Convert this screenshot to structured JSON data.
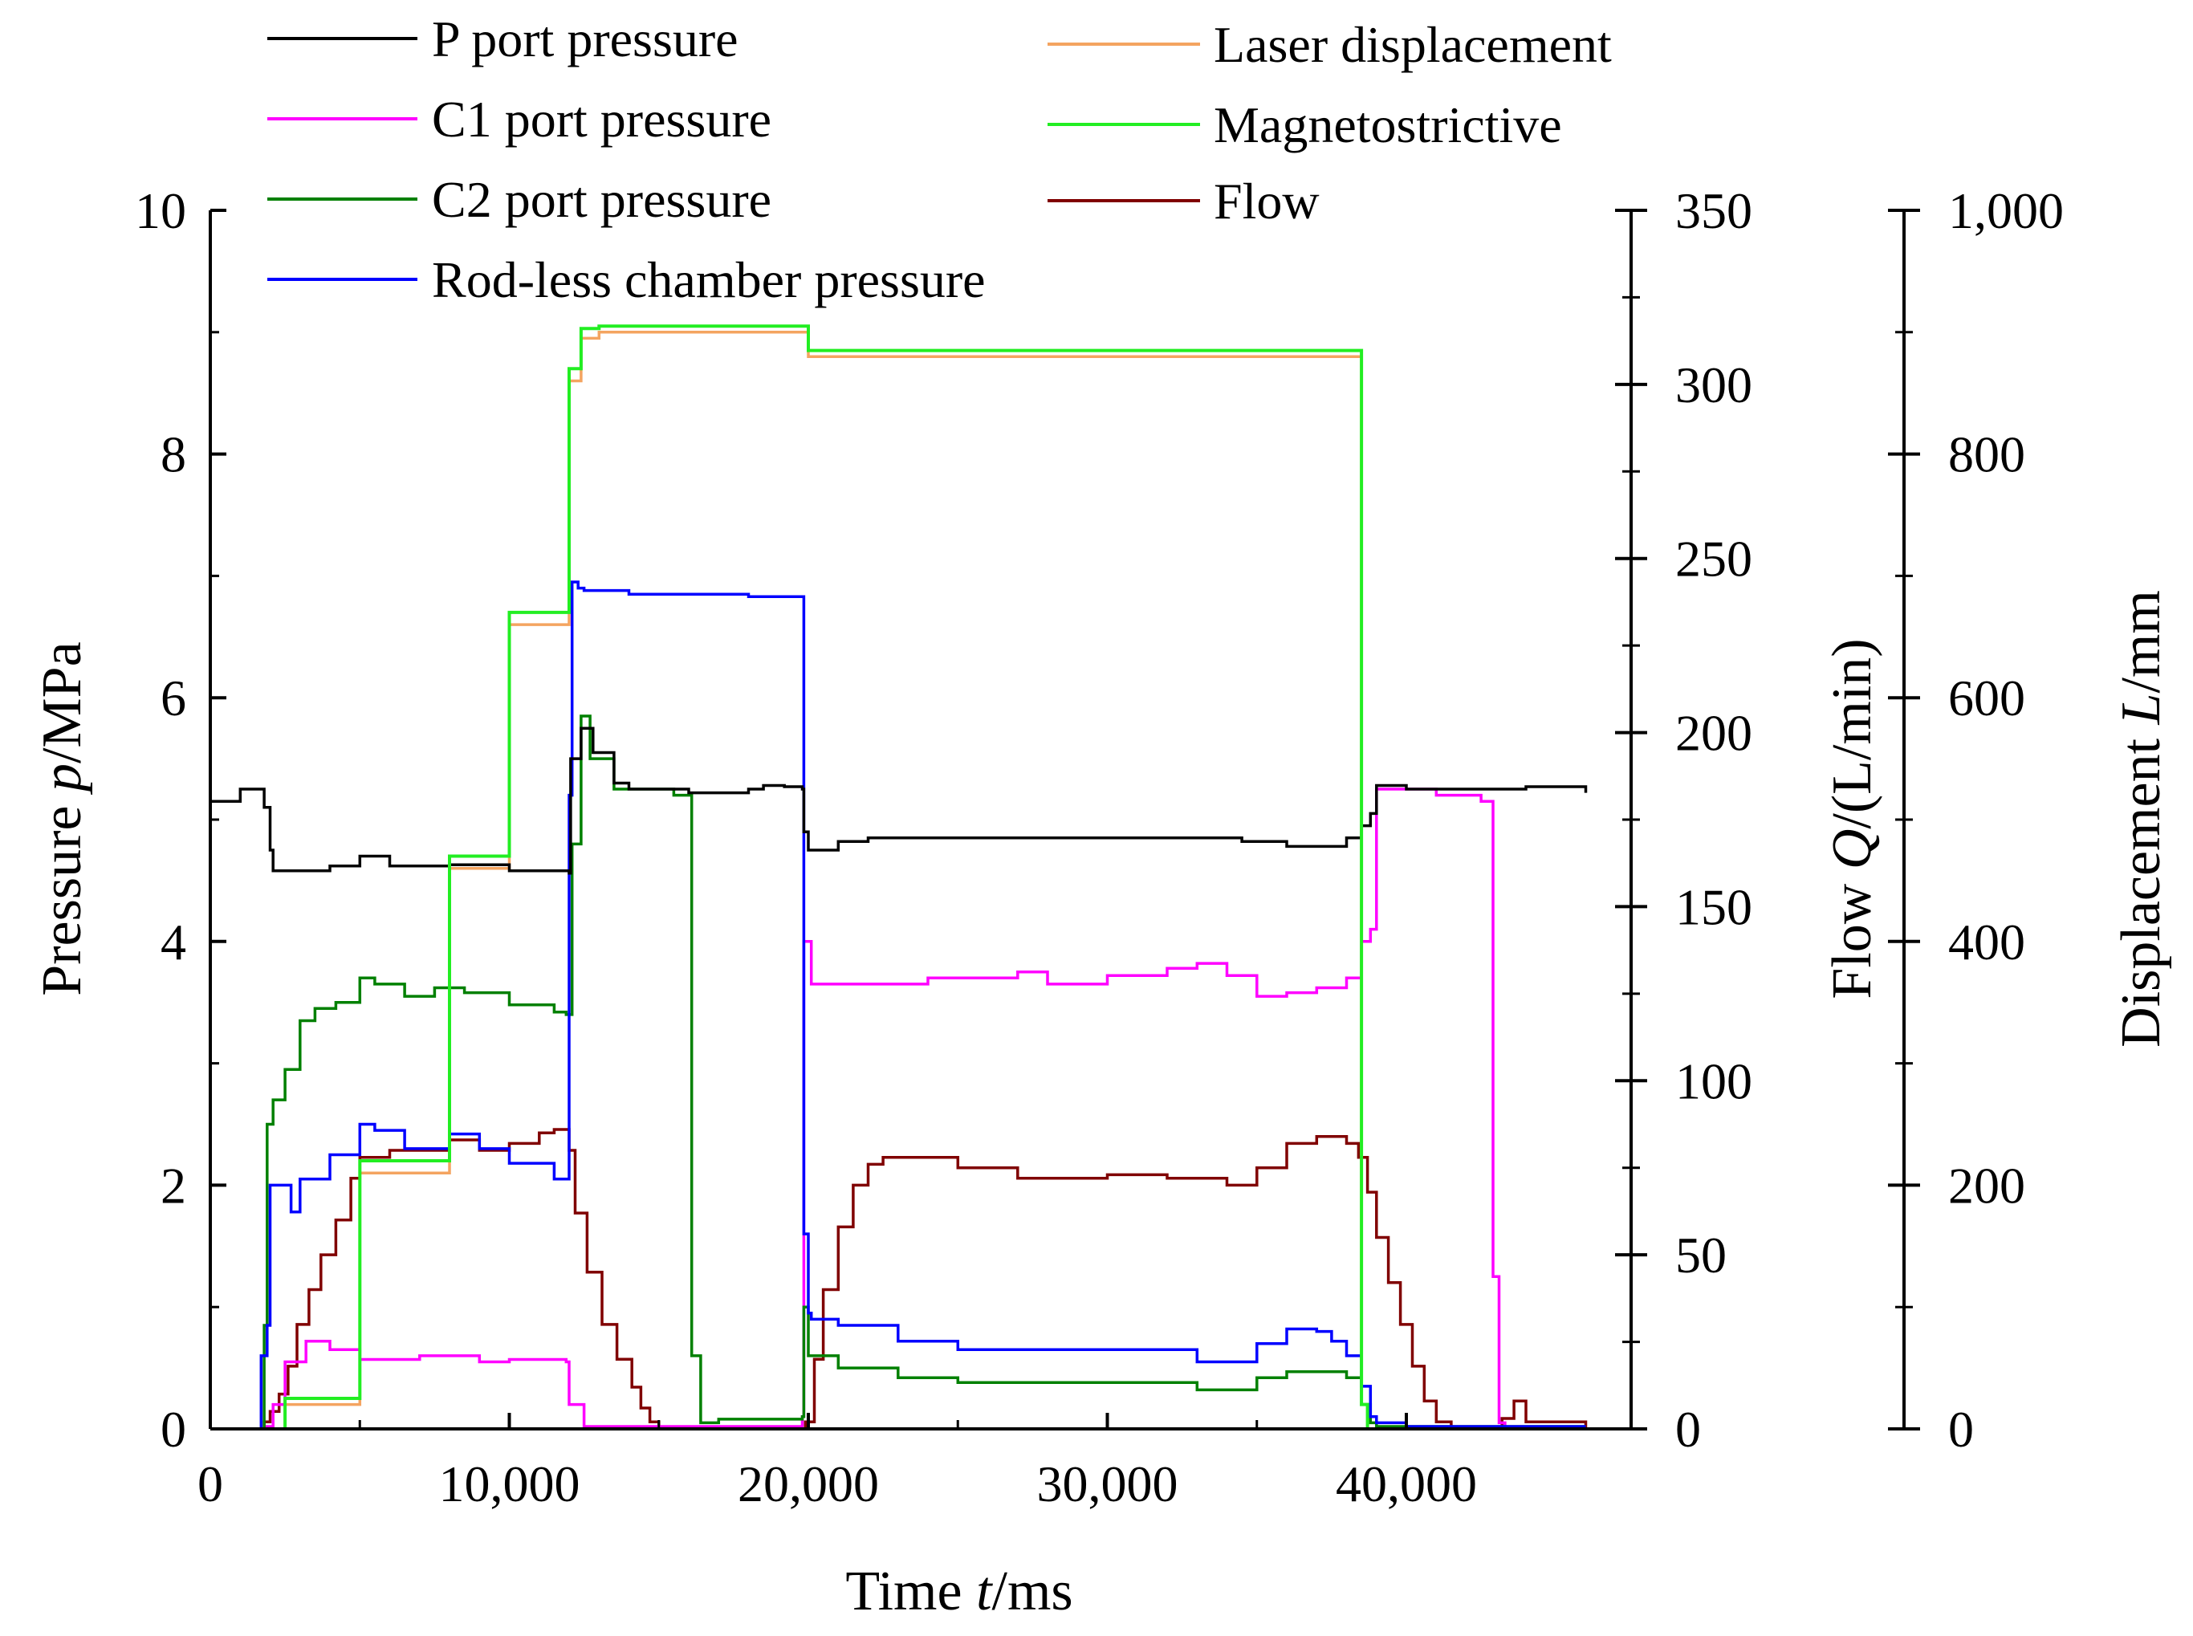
{
  "chart_data": {
    "type": "line",
    "x_label_prefix": "Time ",
    "x_label_var": "t",
    "x_label_unit": "/ms",
    "xlim": [
      0,
      48000
    ],
    "x_ticks": [
      0,
      10000,
      20000,
      30000,
      40000
    ],
    "x_tick_labels": [
      "0",
      "10,000",
      "20,000",
      "30,000",
      "40,000"
    ],
    "axes": {
      "pressure": {
        "label_prefix": "Pressure ",
        "label_var": "p",
        "label_unit": "/MPa",
        "lim": [
          0,
          10
        ],
        "ticks": [
          0,
          2,
          4,
          6,
          8,
          10
        ],
        "tick_labels": [
          "0",
          "2",
          "4",
          "6",
          "8",
          "10"
        ]
      },
      "flow": {
        "label_prefix": "Flow ",
        "label_var": "Q",
        "label_unit": "/(L/min)",
        "lim": [
          0,
          350
        ],
        "ticks": [
          0,
          50,
          100,
          150,
          200,
          250,
          300,
          350
        ],
        "tick_labels": [
          "0",
          "50",
          "100",
          "150",
          "200",
          "250",
          "300",
          "350"
        ]
      },
      "displacement": {
        "label_prefix": "Displacement ",
        "label_var": "L",
        "label_unit": "/mm",
        "lim": [
          0,
          1000
        ],
        "ticks": [
          0,
          200,
          400,
          600,
          800,
          1000
        ],
        "tick_labels": [
          "0",
          "200",
          "400",
          "600",
          "800",
          "1,000"
        ]
      }
    },
    "series": [
      {
        "name": "P port pressure",
        "axis": "pressure",
        "color": "#000000",
        "x": [
          0,
          1000,
          1300,
          1800,
          2000,
          2100,
          4000,
          5000,
          6000,
          8000,
          10000,
          12000,
          12050,
          12400,
          12800,
          13500,
          14000,
          16000,
          18000,
          18500,
          19200,
          19800,
          19850,
          20000,
          21000,
          22000,
          25000,
          28000,
          30000,
          33000,
          34500,
          36000,
          38000,
          38500,
          38800,
          39000,
          40000,
          42000,
          44000,
          46000
        ],
        "y": [
          5.15,
          5.25,
          5.25,
          5.1,
          4.75,
          4.58,
          4.62,
          4.7,
          4.62,
          4.63,
          4.58,
          4.56,
          5.5,
          5.75,
          5.55,
          5.3,
          5.25,
          5.22,
          5.25,
          5.28,
          5.27,
          5.25,
          4.9,
          4.75,
          4.82,
          4.85,
          4.85,
          4.85,
          4.85,
          4.85,
          4.82,
          4.78,
          4.85,
          4.95,
          5.05,
          5.28,
          5.25,
          5.25,
          5.27,
          5.22
        ]
      },
      {
        "name": "C1 port pressure",
        "axis": "pressure",
        "color": "#ff00ff",
        "x": [
          0,
          1800,
          1900,
          2100,
          2500,
          3200,
          4000,
          5000,
          7000,
          9000,
          10000,
          11500,
          11900,
          12000,
          12500,
          14000,
          16000,
          18000,
          19500,
          19800,
          19850,
          20000,
          20100,
          21000,
          24000,
          27000,
          28000,
          30000,
          32000,
          33000,
          34000,
          35000,
          36000,
          37000,
          38000,
          38500,
          38800,
          39000,
          40000,
          41000,
          42500,
          42600,
          42900,
          43100,
          43300,
          46000
        ],
        "y": [
          0,
          0,
          0.02,
          0.2,
          0.55,
          0.72,
          0.65,
          0.57,
          0.6,
          0.55,
          0.57,
          0.57,
          0.55,
          0.2,
          0.02,
          0.02,
          0.02,
          0.02,
          0.02,
          0.1,
          4.0,
          4.0,
          3.65,
          3.65,
          3.7,
          3.75,
          3.65,
          3.72,
          3.78,
          3.82,
          3.72,
          3.55,
          3.58,
          3.62,
          3.7,
          4.0,
          4.1,
          5.25,
          5.25,
          5.2,
          5.15,
          5.15,
          1.25,
          0.05,
          0,
          0
        ]
      },
      {
        "name": "C2 port pressure",
        "axis": "pressure",
        "color": "#008000",
        "x": [
          0,
          1600,
          1800,
          1900,
          2100,
          2500,
          3000,
          3500,
          4200,
          5000,
          5500,
          6500,
          7500,
          8500,
          10000,
          11500,
          11900,
          12100,
          12400,
          12700,
          13500,
          15500,
          15900,
          16100,
          16400,
          17000,
          19000,
          19500,
          19800,
          19850,
          20000,
          21000,
          23000,
          25000,
          28000,
          30000,
          33000,
          35000,
          36000,
          38000,
          38500,
          38800,
          39000,
          46000
        ],
        "y": [
          0,
          0,
          0.85,
          2.5,
          2.7,
          2.95,
          3.35,
          3.45,
          3.5,
          3.7,
          3.65,
          3.55,
          3.62,
          3.58,
          3.48,
          3.42,
          3.4,
          4.8,
          5.85,
          5.5,
          5.25,
          5.2,
          5.2,
          0.6,
          0.05,
          0.08,
          0.08,
          0.08,
          0.1,
          1.0,
          0.6,
          0.5,
          0.42,
          0.38,
          0.38,
          0.38,
          0.32,
          0.42,
          0.47,
          0.42,
          0.2,
          0.05,
          0.02,
          0.02
        ]
      },
      {
        "name": "Rod-less chamber pressure",
        "axis": "pressure",
        "color": "#0000ff",
        "x": [
          0,
          1500,
          1700,
          1900,
          2000,
          2600,
          2700,
          3000,
          4000,
          5000,
          5500,
          6500,
          8000,
          9000,
          10000,
          11500,
          11900,
          12000,
          12100,
          12300,
          12500,
          14000,
          16000,
          18000,
          19500,
          19800,
          19850,
          20000,
          20100,
          21000,
          23000,
          25000,
          28000,
          30000,
          33000,
          35000,
          36000,
          37000,
          37500,
          38000,
          38500,
          38800,
          39000,
          39200,
          40000,
          41000,
          42000,
          46000
        ],
        "y": [
          0,
          0,
          0.6,
          0.85,
          2.0,
          2.0,
          1.78,
          2.05,
          2.25,
          2.5,
          2.45,
          2.3,
          2.42,
          2.3,
          2.18,
          2.05,
          2.05,
          5.2,
          6.95,
          6.9,
          6.88,
          6.85,
          6.85,
          6.83,
          6.83,
          6.83,
          1.6,
          0.95,
          0.9,
          0.85,
          0.72,
          0.65,
          0.65,
          0.65,
          0.55,
          0.7,
          0.82,
          0.8,
          0.72,
          0.6,
          0.35,
          0.1,
          0.05,
          0.05,
          0.02,
          0.02,
          0.02,
          0.02
        ]
      },
      {
        "name": "Laser displacement",
        "axis": "displacement",
        "color": "#f4a460",
        "x": [
          0,
          1800,
          2500,
          5000,
          8000,
          10000,
          12000,
          12400,
          13000,
          19700,
          20000,
          38500,
          38700,
          46000
        ],
        "y": [
          0,
          0,
          20,
          210,
          460,
          660,
          860,
          895,
          900,
          900,
          880,
          20,
          0,
          0
        ]
      },
      {
        "name": "Magnetostrictive",
        "axis": "displacement",
        "color": "#22ee22",
        "x": [
          0,
          1800,
          2500,
          5000,
          8000,
          10000,
          12000,
          12400,
          13000,
          19700,
          20000,
          38500,
          38700,
          46000
        ],
        "y": [
          0,
          0,
          25,
          220,
          470,
          670,
          870,
          903,
          905,
          905,
          885,
          20,
          0,
          0
        ]
      },
      {
        "name": "Flow",
        "axis": "flow",
        "color": "#800000",
        "x": [
          0,
          1600,
          1800,
          2000,
          2300,
          2600,
          2900,
          3300,
          3700,
          4200,
          4700,
          5000,
          6000,
          7000,
          8000,
          9000,
          10000,
          11000,
          11500,
          12000,
          12200,
          12600,
          13100,
          13600,
          14100,
          14400,
          14700,
          15000,
          16000,
          18000,
          19500,
          19700,
          19900,
          20200,
          20500,
          21000,
          21500,
          22000,
          22500,
          23000,
          25000,
          27000,
          30000,
          32000,
          34000,
          35000,
          36000,
          37000,
          38000,
          38400,
          38700,
          39000,
          39400,
          39800,
          40200,
          40600,
          41000,
          41500,
          42500,
          43000,
          43200,
          43600,
          44000,
          46000
        ],
        "y": [
          0,
          0,
          2,
          5,
          10,
          18,
          30,
          40,
          50,
          60,
          72,
          78,
          80,
          80,
          83,
          80,
          82,
          85,
          86,
          80,
          62,
          45,
          30,
          20,
          12,
          6,
          2,
          0,
          0,
          0,
          0,
          0,
          2,
          20,
          40,
          58,
          70,
          76,
          78,
          78,
          75,
          72,
          73,
          72,
          70,
          75,
          82,
          84,
          82,
          78,
          68,
          55,
          42,
          30,
          18,
          8,
          2,
          0,
          0,
          0,
          3,
          8,
          2,
          0
        ]
      }
    ],
    "legend": {
      "col1": [
        "P port pressure",
        "C1 port pressure",
        "C2 port pressure",
        "Rod-less chamber pressure"
      ],
      "col2": [
        "Laser displacement",
        "Magnetostrictive",
        "Flow"
      ]
    }
  }
}
